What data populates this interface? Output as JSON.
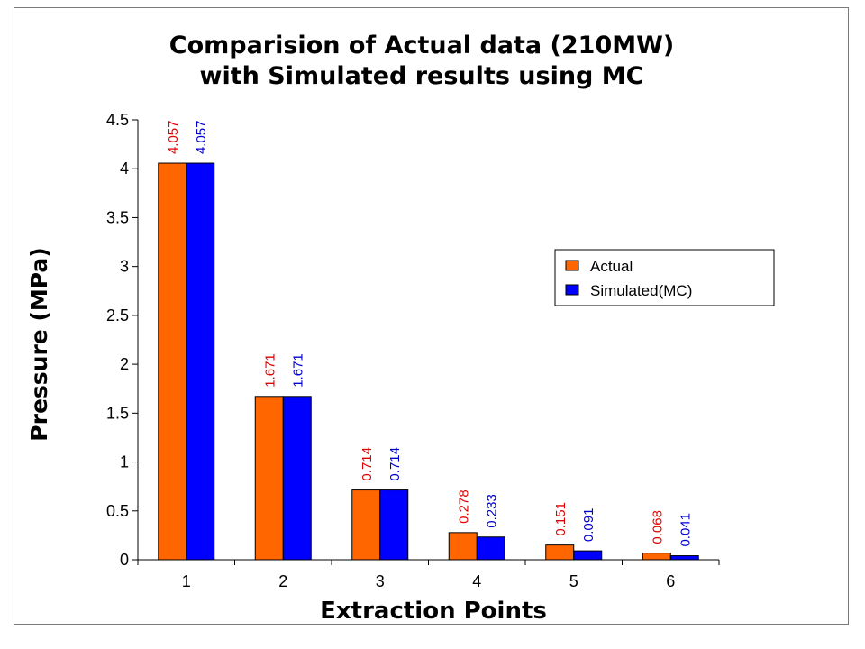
{
  "chart_data": {
    "type": "bar",
    "title_lines": [
      "Comparision of Actual data (210MW)",
      "with Simulated results using MC"
    ],
    "xlabel": "Extraction Points",
    "ylabel": "Pressure (MPa)",
    "categories": [
      "1",
      "2",
      "3",
      "4",
      "5",
      "6"
    ],
    "ylim": [
      0,
      4.5
    ],
    "yticks": [
      "0",
      "0.5",
      "1",
      "1.5",
      "2",
      "2.5",
      "3",
      "3.5",
      "4",
      "4.5"
    ],
    "grid": false,
    "legend_position": "right",
    "series": [
      {
        "name": "Actual",
        "color": "#ff6600",
        "label_color": "#e00000",
        "values": [
          4.057,
          1.671,
          0.714,
          0.278,
          0.151,
          0.068
        ],
        "labels": [
          "4.057",
          "1.671",
          "0.714",
          "0.278",
          "0.151",
          "0.068"
        ]
      },
      {
        "name": "Simulated(MC)",
        "color": "#0000ff",
        "label_color": "#0000cc",
        "values": [
          4.057,
          1.671,
          0.714,
          0.233,
          0.091,
          0.041
        ],
        "labels": [
          "4.057",
          "1.671",
          "0.714",
          "0.233",
          "0.091",
          "0.041"
        ]
      }
    ]
  }
}
